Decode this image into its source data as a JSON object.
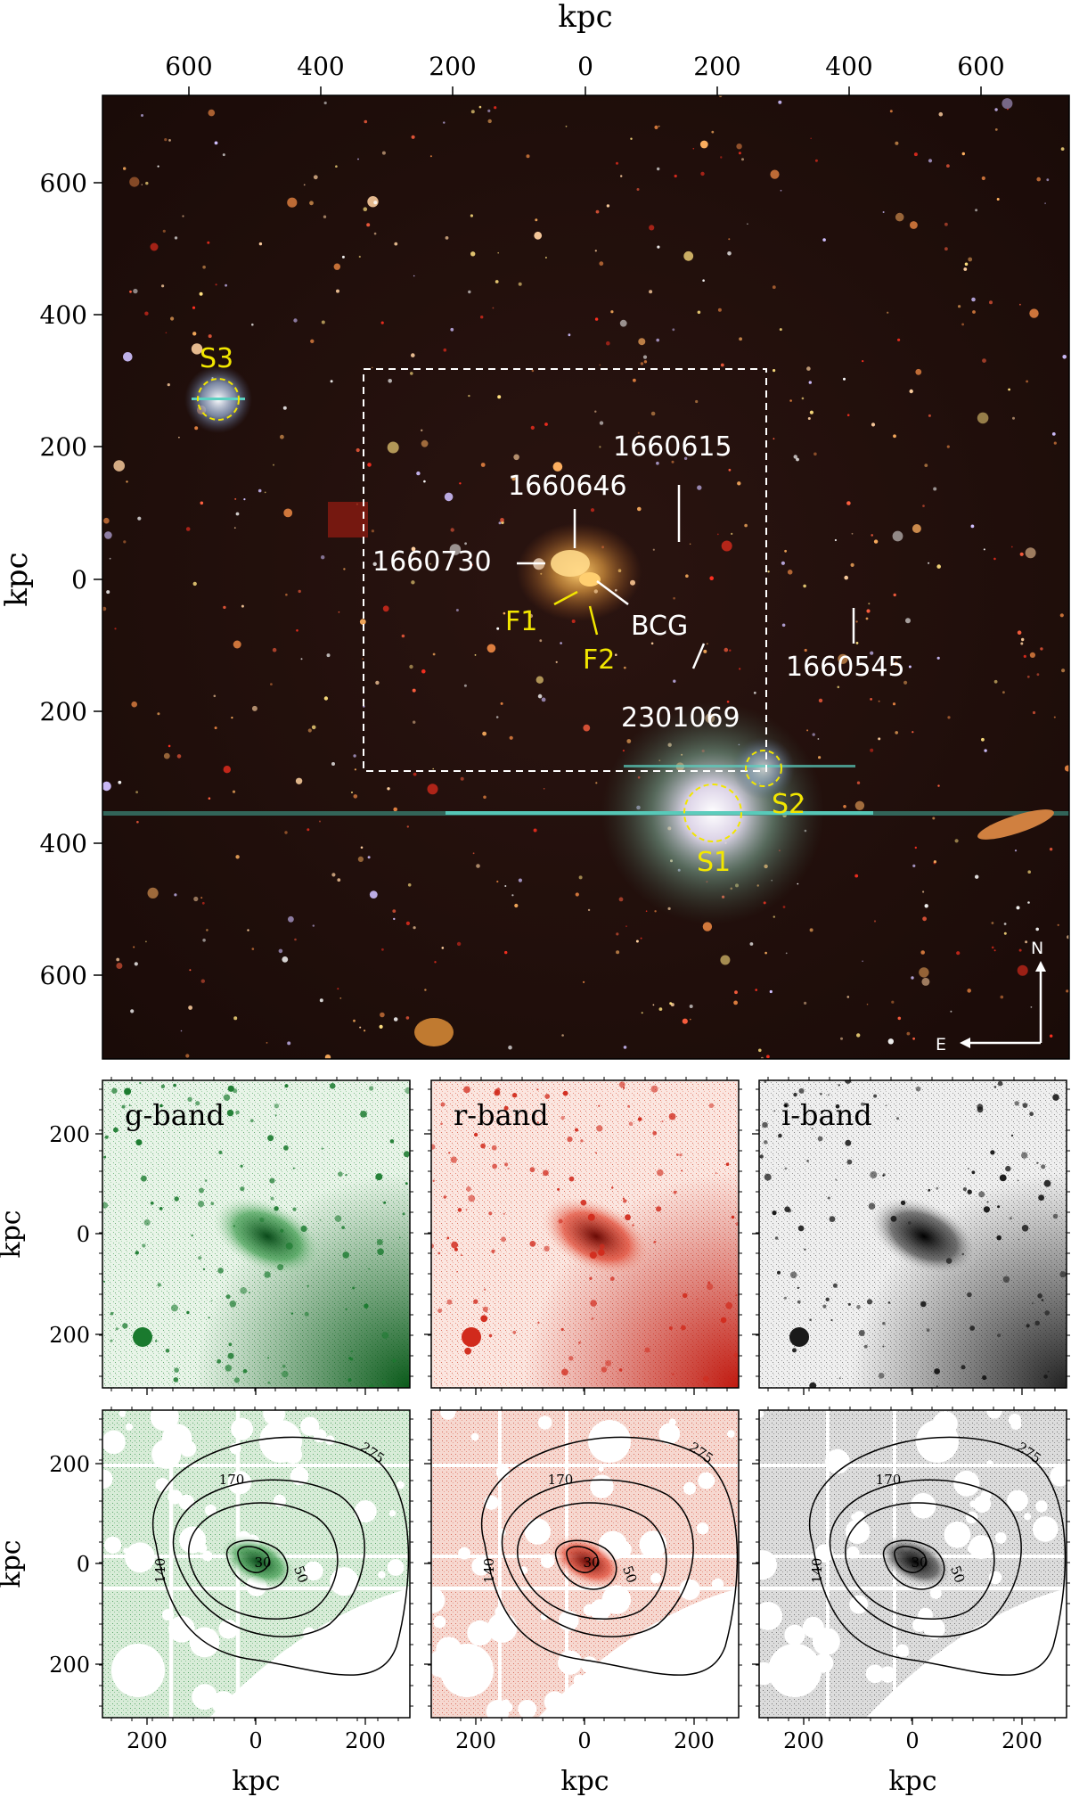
{
  "main_panel": {
    "axis_label_top": "kpc",
    "axis_label_left": "kpc",
    "top_ticks": [
      "600",
      "400",
      "200",
      "0",
      "200",
      "400",
      "600"
    ],
    "left_ticks": [
      "600",
      "400",
      "200",
      "0",
      "200",
      "400",
      "600"
    ],
    "galaxies": {
      "g1660615": "1660615",
      "g1660646": "1660646",
      "g1660730": "1660730",
      "bcg": "BCG",
      "g1660545": "1660545",
      "g2301069": "2301069"
    },
    "features": {
      "f1": "F1",
      "f2": "F2"
    },
    "stars": {
      "s1": "S1",
      "s2": "S2",
      "s3": "S3"
    },
    "compass": {
      "north": "N",
      "east": "E"
    }
  },
  "band_panels": {
    "g": {
      "label": "g-band",
      "color": "#1a7a2e"
    },
    "r": {
      "label": "r-band",
      "color": "#d12a1c"
    },
    "i": {
      "label": "i-band",
      "color": "#1a1a1a"
    }
  },
  "small_axes": {
    "left_ticks": [
      "200",
      "0",
      "200"
    ],
    "bottom_ticks": [
      "200",
      "0",
      "200"
    ],
    "axis_label": "kpc"
  },
  "contours": {
    "levels": [
      "30",
      "50",
      "140",
      "170",
      "275"
    ]
  }
}
